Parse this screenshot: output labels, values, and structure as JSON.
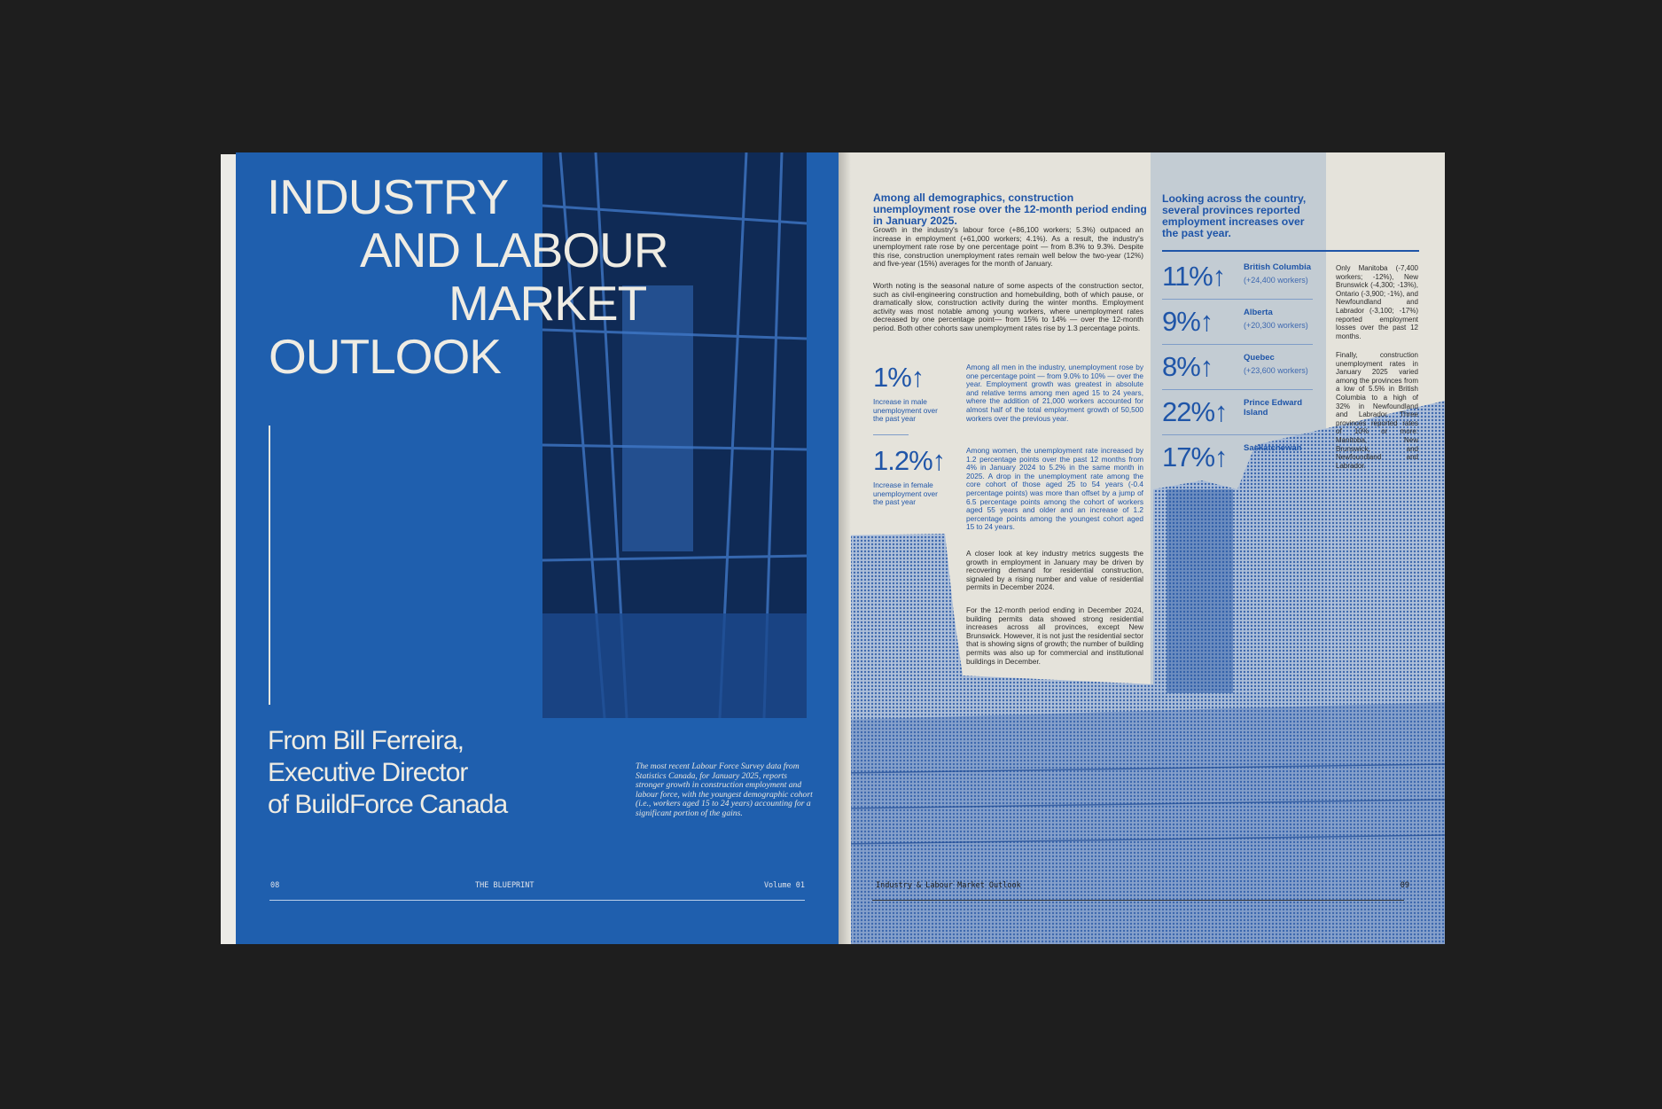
{
  "left_page": {
    "title_lines": [
      "INDUSTRY",
      "AND LABOUR",
      "MARKET",
      "OUTLOOK"
    ],
    "byline_lines": [
      "From Bill Ferreira,",
      "Executive Director",
      "of BuildForce Canada"
    ],
    "caption": "The most recent Labour Force Survey data from Statistics Canada, for January 2025, reports stronger growth in construction employment and labour force, with the youngest demographic cohort (i.e., workers aged 15 to 24 years) accounting for a significant portion of the gains.",
    "footer": {
      "page": "08",
      "publication": "THE BLUEPRINT",
      "volume": "Volume 01"
    }
  },
  "right_page": {
    "heading": "Among all demographics, construction unemployment rose over the 12-month period ending in January 2025.",
    "paragraphs": [
      "Growth in the industry's labour force (+86,100 workers; 5.3%) outpaced an increase in employment (+61,000 workers; 4.1%). As a result, the industry's unemployment rate rose by one percentage point — from 8.3% to 9.3%. Despite this rise, construction unemployment rates remain well below the two-year (12%) and five-year (15%) averages for the month of January.",
      "Worth noting is the seasonal nature of some aspects of the construction sector, such as civil-engineering construction and homebuilding, both of which pause, or dramatically slow, construction activity during the winter months. Employment activity was most notable among young workers, where unemployment rates decreased by one percentage point— from 15% to 14% — over the 12-month period. Both other cohorts saw unemployment rates rise by 1.3 percentage points."
    ],
    "stats": [
      {
        "value": "1%↑",
        "label": "Increase in male unemployment over the past year",
        "text": "Among all men in the industry, unemployment rose by one percentage point — from 9.0% to 10% — over the year. Employment growth was greatest in absolute and relative terms among men aged 15 to 24 years, where the addition of 21,000 workers accounted for almost half of the total employment growth of 50,500 workers over the previous year."
      },
      {
        "value": "1.2%↑",
        "label": "Increase in female unemployment over the past year",
        "text": "Among women, the unemployment rate increased by 1.2 percentage points over the past 12 months from 4% in January 2024 to 5.2% in the same month in 2025. A drop in the unemployment rate among the core cohort of those aged 25 to 54 years (-0.4 percentage points) was more than offset by a jump of 6.5 percentage points among the cohort of workers aged 55 years and older and an increase of 1.2 percentage points among the youngest cohort aged 15 to 24 years."
      }
    ],
    "closing_paragraphs": [
      "A closer look at key industry metrics suggests the growth in employment in January may be driven by recovering demand for residential construction, signaled by a rising number and value of residential permits in December 2024.",
      "For the 12-month period ending in December 2024, building permits data showed strong residential increases across all provinces, except New Brunswick. However, it is not just the residential sector that is showing signs of growth; the number of building permits was also up for commercial and institutional buildings in December."
    ],
    "provinces_heading": "Looking across the country, several provinces reported employment increases over the past year.",
    "provinces": [
      {
        "value": "11%↑",
        "name": "British Columbia",
        "workers": "(+24,400 workers)"
      },
      {
        "value": "9%↑",
        "name": "Alberta",
        "workers": "(+20,300 workers)"
      },
      {
        "value": "8%↑",
        "name": "Quebec",
        "workers": "(+23,600 workers)"
      },
      {
        "value": "22%↑",
        "name": "Prince Edward Island",
        "workers": ""
      },
      {
        "value": "17%↑",
        "name": "Saskatchewan",
        "workers": ""
      }
    ],
    "side_paragraphs": [
      "Only Manitoba (-7,400 workers; -12%), New Brunswick (-4,300; -13%), Ontario (-3,900; -1%), and Newfoundland and Labrador (-3,100; -17%) reported employment losses over the past 12 months.",
      "Finally, construction unemployment rates in January 2025 varied among the provinces from a low of 5.5% in British Columbia to a high of 32% in Newfoundland and Labrador. Three provinces reported rates of 10% or more: Manitoba, New Brunswick, and Newfoundland and Labrador."
    ],
    "footer": {
      "section": "Industry & Labour Market Outlook",
      "page": "09"
    }
  },
  "colors": {
    "page_blue": "#1f5fae",
    "accent_blue": "#1f55a8",
    "paper": "#e5e3db",
    "panel": "#c3ccd3",
    "background": "#1e1e1e"
  }
}
